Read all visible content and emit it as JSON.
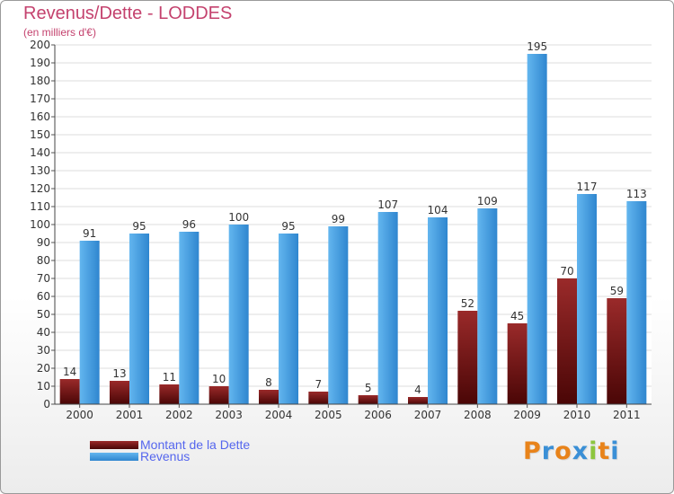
{
  "header": {
    "title": "Revenus/Dette - LODDES",
    "subtitle": "(en milliers d'€)"
  },
  "colors": {
    "title": "#c4426e",
    "dette_top": "#9a2a2a",
    "dette_bottom": "#4a0606",
    "revenus_top": "#63b6ef",
    "revenus_bottom": "#2f86cf",
    "legend_text": "#5566ee"
  },
  "legend": {
    "dette_label": "Montant de la Dette",
    "revenus_label": "Revenus"
  },
  "logo": {
    "text": "Proxiti"
  },
  "chart_data": {
    "type": "bar",
    "categories": [
      "2000",
      "2001",
      "2002",
      "2003",
      "2004",
      "2005",
      "2006",
      "2007",
      "2008",
      "2009",
      "2010",
      "2011"
    ],
    "series": [
      {
        "name": "Montant de la Dette",
        "values": [
          14,
          13,
          11,
          10,
          8,
          7,
          5,
          4,
          52,
          45,
          70,
          59
        ]
      },
      {
        "name": "Revenus",
        "values": [
          91,
          95,
          96,
          100,
          95,
          99,
          107,
          104,
          109,
          195,
          117,
          113
        ]
      }
    ],
    "title": "Revenus/Dette - LODDES",
    "subtitle": "(en milliers d'€)",
    "ylim": [
      0,
      200
    ],
    "ytick_step": 10,
    "grid": true,
    "legend_position": "bottom-left"
  }
}
